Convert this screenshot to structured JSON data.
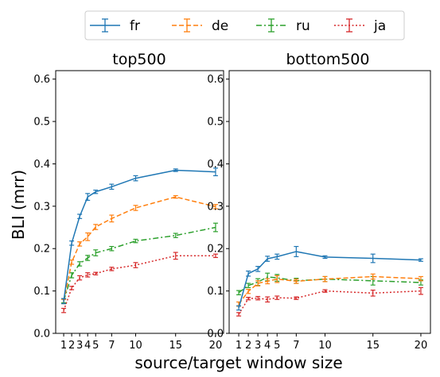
{
  "legend": {
    "placement": "top-center",
    "entries": [
      {
        "name": "fr",
        "color": "#1f77b4",
        "style": "solid"
      },
      {
        "name": "de",
        "color": "#ff7f0e",
        "style": "dashed"
      },
      {
        "name": "ru",
        "color": "#2ca02c",
        "style": "dashdot"
      },
      {
        "name": "ja",
        "color": "#d62728",
        "style": "dotted"
      }
    ]
  },
  "shared_ylabel": "BLI (mrr)",
  "shared_xlabel": "source/target window size",
  "chart_data": [
    {
      "type": "line",
      "title": "top500",
      "x": [
        1,
        2,
        3,
        4,
        5,
        7,
        10,
        15,
        20
      ],
      "x_tick_labels": [
        "1",
        "2",
        "3",
        "4",
        "5",
        "7",
        "10",
        "15",
        "20"
      ],
      "xlim": [
        0.0,
        21.0
      ],
      "ylim": [
        0.0,
        0.62
      ],
      "y_ticks": [
        "0.0",
        "0.1",
        "0.2",
        "0.3",
        "0.4",
        "0.5",
        "0.6"
      ],
      "error_bars": true,
      "series": [
        {
          "name": "fr",
          "values": [
            0.076,
            0.213,
            0.276,
            0.322,
            0.334,
            0.346,
            0.366,
            0.385,
            0.381
          ],
          "err": [
            0.006,
            0.005,
            0.005,
            0.008,
            0.004,
            0.006,
            0.006,
            0.003,
            0.009
          ]
        },
        {
          "name": "de",
          "values": [
            0.075,
            0.168,
            0.211,
            0.228,
            0.251,
            0.271,
            0.296,
            0.322,
            0.299
          ],
          "err": [
            0.005,
            0.005,
            0.005,
            0.009,
            0.006,
            0.008,
            0.006,
            0.003,
            0.005
          ]
        },
        {
          "name": "ru",
          "values": [
            0.077,
            0.137,
            0.164,
            0.178,
            0.19,
            0.2,
            0.218,
            0.231,
            0.25
          ],
          "err": [
            0.005,
            0.006,
            0.005,
            0.006,
            0.007,
            0.005,
            0.004,
            0.005,
            0.01
          ]
        },
        {
          "name": "ja",
          "values": [
            0.054,
            0.107,
            0.131,
            0.138,
            0.141,
            0.152,
            0.161,
            0.183,
            0.183
          ],
          "err": [
            0.005,
            0.004,
            0.005,
            0.005,
            0.003,
            0.004,
            0.006,
            0.008,
            0.004
          ]
        }
      ]
    },
    {
      "type": "line",
      "title": "bottom500",
      "x": [
        1,
        2,
        3,
        4,
        5,
        7,
        10,
        15,
        20
      ],
      "x_tick_labels": [
        "1",
        "2",
        "3",
        "4",
        "5",
        "7",
        "10",
        "15",
        "20"
      ],
      "xlim": [
        0.0,
        21.0
      ],
      "ylim": [
        0.0,
        0.62
      ],
      "y_ticks": [
        "0.0",
        "0.1",
        "0.2",
        "0.3",
        "0.4",
        "0.5",
        "0.6"
      ],
      "error_bars": true,
      "series": [
        {
          "name": "fr",
          "values": [
            0.06,
            0.141,
            0.152,
            0.176,
            0.181,
            0.193,
            0.18,
            0.177,
            0.173
          ],
          "err": [
            0.005,
            0.006,
            0.006,
            0.006,
            0.006,
            0.012,
            0.003,
            0.01,
            0.003
          ]
        },
        {
          "name": "de",
          "values": [
            0.069,
            0.099,
            0.118,
            0.123,
            0.128,
            0.123,
            0.128,
            0.134,
            0.129
          ],
          "err": [
            0.005,
            0.005,
            0.006,
            0.006,
            0.008,
            0.005,
            0.006,
            0.006,
            0.005
          ]
        },
        {
          "name": "ru",
          "values": [
            0.096,
            0.113,
            0.121,
            0.133,
            0.131,
            0.124,
            0.128,
            0.124,
            0.12
          ],
          "err": [
            0.005,
            0.005,
            0.008,
            0.009,
            0.008,
            0.006,
            0.006,
            0.01,
            0.006
          ]
        },
        {
          "name": "ja",
          "values": [
            0.045,
            0.082,
            0.083,
            0.08,
            0.084,
            0.083,
            0.1,
            0.095,
            0.1
          ],
          "err": [
            0.004,
            0.003,
            0.004,
            0.006,
            0.004,
            0.003,
            0.003,
            0.007,
            0.008
          ]
        }
      ]
    }
  ]
}
